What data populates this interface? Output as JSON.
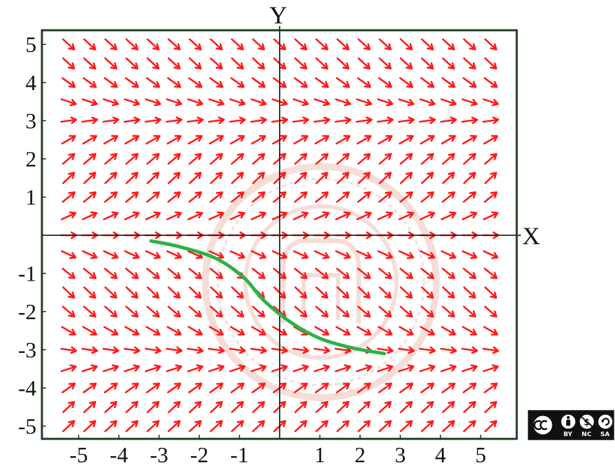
{
  "chart_data": {
    "type": "vector-field",
    "xlabel": "X",
    "ylabel": "Y",
    "xlim": [
      -5.75,
      5.75
    ],
    "ylim": [
      -5.3,
      5.4
    ],
    "x_ticks": [
      -5,
      -4,
      -3,
      -2,
      -1,
      1,
      2,
      3,
      4,
      5
    ],
    "x_tick_labels": [
      "-5",
      "-4",
      "-3",
      "-2",
      "-1",
      "1",
      "2",
      "3",
      "4",
      "5"
    ],
    "y_ticks": [
      5,
      4,
      3,
      2,
      1,
      -1,
      -2,
      -3,
      -4,
      -5
    ],
    "y_tick_labels": [
      "5",
      "4",
      "3",
      "2",
      "1",
      "-1",
      "-2",
      "-3",
      "-4",
      "-5"
    ],
    "field_color": "#ff1a1a",
    "field_slope_model": "dy/dx = sin(y)",
    "grid_x_range": [
      -5.25,
      5.25
    ],
    "grid_x_count": 21,
    "grid_y_range": [
      -5,
      5
    ],
    "grid_y_count": 21,
    "solution_curve": {
      "color": "#2fb04a",
      "points": [
        [
          -3.2,
          -0.15
        ],
        [
          -2.5,
          -0.3
        ],
        [
          -1.6,
          -0.6
        ],
        [
          -0.9,
          -1.1
        ],
        [
          -0.4,
          -1.7
        ],
        [
          0.3,
          -2.3
        ],
        [
          1.0,
          -2.7
        ],
        [
          1.8,
          -2.95
        ],
        [
          2.6,
          -3.1
        ]
      ]
    },
    "frame_color": "#1e3d1e",
    "grid": false,
    "legend": "none"
  },
  "watermark": {
    "color": "#e8a090"
  },
  "license_badge": {
    "icon_names": [
      "cc-icon",
      "by-icon",
      "nc-icon",
      "sa-icon"
    ],
    "labels": [
      "BY",
      "NC",
      "SA"
    ]
  }
}
